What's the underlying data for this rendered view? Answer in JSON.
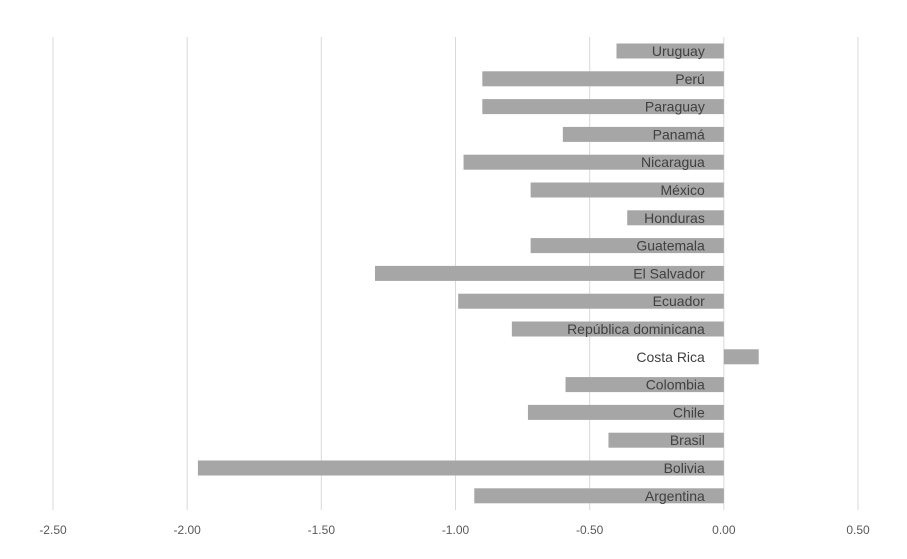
{
  "chart_data": {
    "type": "bar",
    "orientation": "horizontal",
    "categories": [
      "Uruguay",
      "Perú",
      "Paraguay",
      "Panamá",
      "Nicaragua",
      "México",
      "Honduras",
      "Guatemala",
      "El Salvador",
      "Ecuador",
      "República dominicana",
      "Costa Rica",
      "Colombia",
      "Chile",
      "Brasil",
      "Bolivia",
      "Argentina"
    ],
    "values": [
      -0.4,
      -0.9,
      -0.9,
      -0.6,
      -0.97,
      -0.72,
      -0.36,
      -0.72,
      -1.3,
      -0.99,
      -0.79,
      0.13,
      -0.59,
      -0.73,
      -0.43,
      -1.96,
      -0.93
    ],
    "title": "",
    "xlabel": "",
    "ylabel": "",
    "xlim": [
      -2.5,
      0.5
    ],
    "xticks": [
      "-2.50",
      "-2.00",
      "-1.50",
      "-1.00",
      "-0.50",
      "0.00",
      "0.50"
    ],
    "grid": "vertical",
    "bar_color": "#a6a6a6"
  }
}
